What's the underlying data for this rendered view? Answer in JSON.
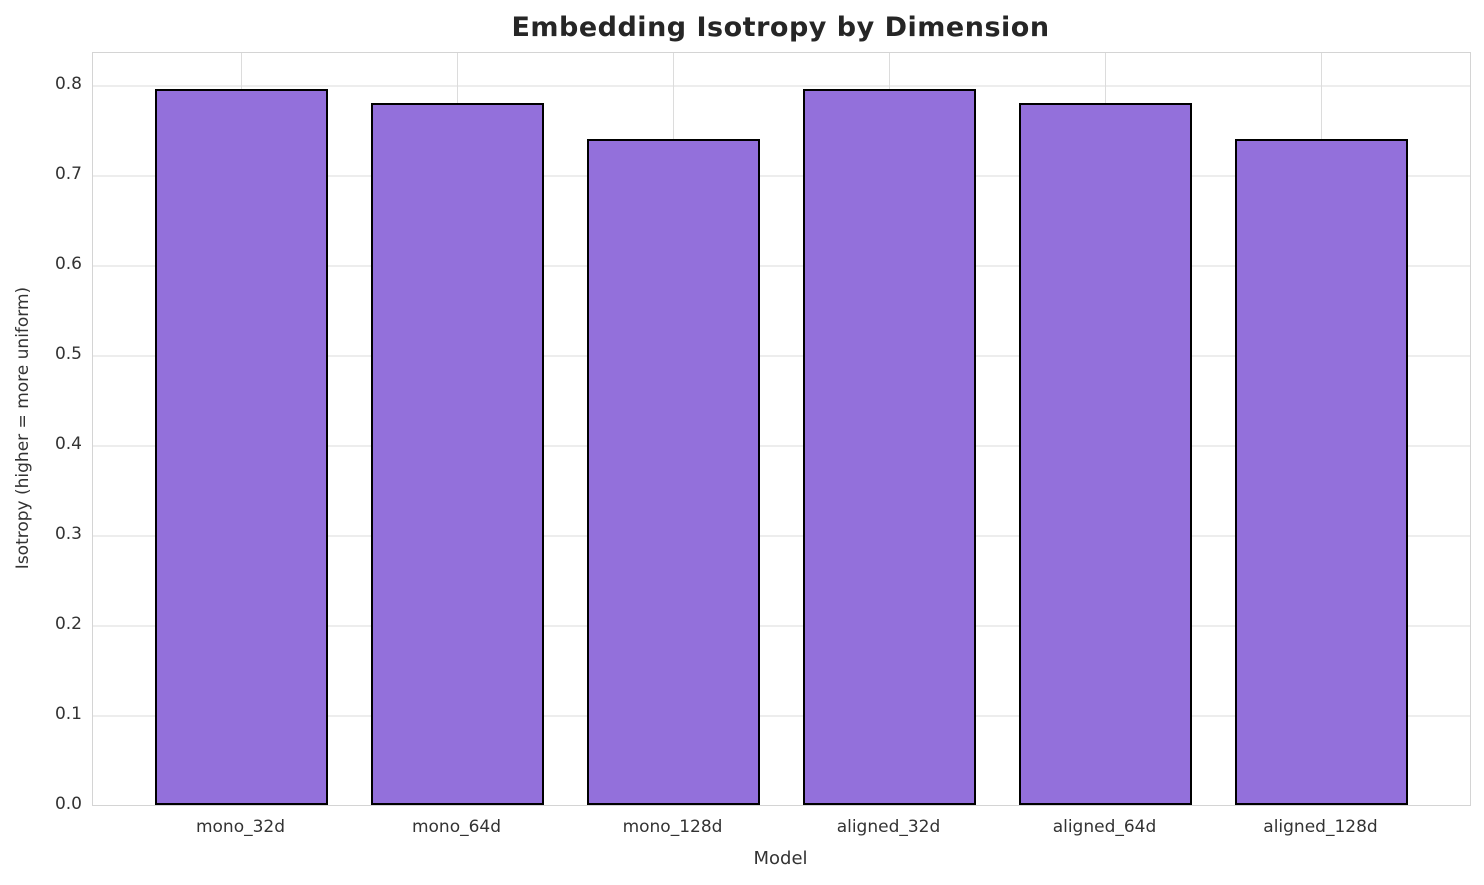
{
  "chart_data": {
    "type": "bar",
    "title": "Embedding Isotropy by Dimension",
    "xlabel": "Model",
    "ylabel": "Isotropy (higher = more uniform)",
    "categories": [
      "mono_32d",
      "mono_64d",
      "mono_128d",
      "aligned_32d",
      "aligned_64d",
      "aligned_128d"
    ],
    "values": [
      0.796,
      0.78,
      0.741,
      0.796,
      0.78,
      0.741
    ],
    "ylim": [
      0.0,
      0.836
    ],
    "yticks": [
      0.0,
      0.1,
      0.2,
      0.3,
      0.4,
      0.5,
      0.6,
      0.7,
      0.8
    ],
    "ytick_labels": [
      "0.0",
      "0.1",
      "0.2",
      "0.3",
      "0.4",
      "0.5",
      "0.6",
      "0.7",
      "0.8"
    ],
    "grid": true,
    "legend": null,
    "bar_color": "#9370DB",
    "bar_edge_color": "#000000"
  }
}
